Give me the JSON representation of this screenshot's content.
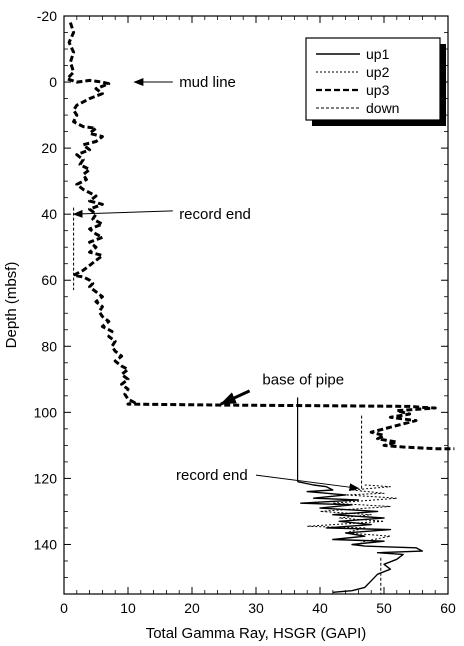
{
  "chart_data": {
    "type": "line",
    "xlabel": "Total Gamma Ray, HSGR (GAPI)",
    "ylabel": "Depth (mbsf)",
    "xlim": [
      0,
      60
    ],
    "ylim": [
      -20,
      155
    ],
    "y_inverted": true,
    "x_ticks": [
      0,
      10,
      20,
      30,
      40,
      50,
      60
    ],
    "y_ticks": [
      -20,
      0,
      20,
      40,
      60,
      80,
      100,
      120,
      140
    ],
    "grid": false,
    "legend_position": "top-right",
    "series": [
      {
        "name": "up1",
        "style": "solid",
        "points": [
          [
            36.5,
            121
          ],
          [
            39,
            122
          ],
          [
            41,
            122.5
          ],
          [
            42,
            123.5
          ],
          [
            38,
            124
          ],
          [
            44,
            125
          ],
          [
            39,
            126
          ],
          [
            46,
            126.5
          ],
          [
            37,
            127.5
          ],
          [
            45,
            128
          ],
          [
            40,
            129
          ],
          [
            49,
            130
          ],
          [
            42,
            131
          ],
          [
            50,
            132
          ],
          [
            43,
            133
          ],
          [
            48,
            134
          ],
          [
            41,
            135
          ],
          [
            51,
            135.5
          ],
          [
            44,
            136.5
          ],
          [
            47,
            137.5
          ],
          [
            42,
            138.5
          ],
          [
            50,
            139
          ],
          [
            45,
            140
          ],
          [
            47,
            140.5
          ],
          [
            55,
            141
          ],
          [
            56,
            142
          ],
          [
            49,
            142.5
          ],
          [
            53,
            143
          ],
          [
            52,
            144.5
          ],
          [
            50,
            146
          ],
          [
            51,
            147.5
          ],
          [
            49,
            149
          ],
          [
            48,
            151
          ],
          [
            47,
            153
          ],
          [
            45,
            154
          ],
          [
            42,
            154.5
          ]
        ]
      },
      {
        "name": "up2",
        "style": "dotted",
        "points": [
          [
            47,
            122
          ],
          [
            51,
            122.5
          ],
          [
            45,
            123.5
          ],
          [
            50,
            124.5
          ],
          [
            44,
            125
          ],
          [
            52,
            126
          ],
          [
            42,
            127.5
          ],
          [
            51,
            128.5
          ],
          [
            40,
            130
          ],
          [
            48,
            131
          ],
          [
            43,
            132
          ],
          [
            50,
            133
          ],
          [
            38,
            134.5
          ],
          [
            47,
            135
          ],
          [
            44,
            136.5
          ],
          [
            51,
            137.5
          ],
          [
            47,
            139
          ],
          [
            46,
            140
          ]
        ]
      },
      {
        "name": "up3",
        "style": "dashed",
        "points": [
          [
            1,
            -18
          ],
          [
            1.5,
            -15
          ],
          [
            0.8,
            -12
          ],
          [
            1.5,
            -9
          ],
          [
            1,
            -6
          ],
          [
            1.5,
            -3
          ],
          [
            0.5,
            -1
          ],
          [
            2,
            0
          ],
          [
            4,
            -0.5
          ],
          [
            6,
            0
          ],
          [
            7,
            0.5
          ],
          [
            5,
            2
          ],
          [
            6,
            3.5
          ],
          [
            4,
            5
          ],
          [
            3,
            6
          ],
          [
            2,
            7
          ],
          [
            1.5,
            8.5
          ],
          [
            2,
            10
          ],
          [
            1.5,
            12
          ],
          [
            3,
            13.5
          ],
          [
            5,
            14
          ],
          [
            4,
            15.5
          ],
          [
            6,
            16.5
          ],
          [
            5,
            18
          ],
          [
            3,
            19
          ],
          [
            4,
            20.5
          ],
          [
            2,
            22
          ],
          [
            3,
            23.5
          ],
          [
            2.5,
            25
          ],
          [
            4,
            26.5
          ],
          [
            3,
            28
          ],
          [
            3.5,
            29.5
          ],
          [
            2,
            31
          ],
          [
            3,
            32.5
          ],
          [
            4,
            33.5
          ],
          [
            5,
            34.5
          ],
          [
            4,
            36
          ],
          [
            6,
            37
          ],
          [
            4,
            38.5
          ],
          [
            5,
            40
          ],
          [
            4.5,
            41.5
          ],
          [
            6,
            43
          ],
          [
            4,
            44.5
          ],
          [
            5,
            46
          ],
          [
            6,
            47
          ],
          [
            4,
            48.5
          ],
          [
            5,
            50
          ],
          [
            4,
            51.5
          ],
          [
            6,
            52.5
          ],
          [
            5,
            54
          ],
          [
            4,
            55.5
          ],
          [
            3,
            57
          ],
          [
            1.5,
            58.5
          ],
          [
            3,
            59
          ],
          [
            4,
            60
          ],
          [
            4.5,
            61
          ],
          [
            4,
            62
          ],
          [
            5,
            63.5
          ],
          [
            6,
            65
          ],
          [
            5,
            66.5
          ],
          [
            6,
            68
          ],
          [
            5.5,
            69.5
          ],
          [
            6,
            71
          ],
          [
            7,
            72.5
          ],
          [
            6,
            74
          ],
          [
            7.5,
            75.5
          ],
          [
            7,
            77
          ],
          [
            8,
            78.5
          ],
          [
            7.5,
            80
          ],
          [
            8,
            81.5
          ],
          [
            9,
            83
          ],
          [
            8,
            84.5
          ],
          [
            9,
            86
          ],
          [
            10,
            87
          ],
          [
            9,
            88.5
          ],
          [
            10,
            90
          ],
          [
            9,
            91.5
          ],
          [
            10,
            93
          ],
          [
            9.5,
            94.5
          ],
          [
            10,
            96
          ],
          [
            11,
            97
          ],
          [
            10,
            97.5
          ],
          [
            25,
            97.8
          ],
          [
            40,
            98
          ],
          [
            54,
            98.2
          ],
          [
            56,
            98.5
          ],
          [
            58,
            98.7
          ],
          [
            52,
            99.5
          ],
          [
            54,
            100.5
          ],
          [
            51,
            101.5
          ],
          [
            55,
            102.5
          ],
          [
            53,
            103.5
          ],
          [
            50,
            105
          ],
          [
            48,
            106
          ],
          [
            50,
            107
          ],
          [
            49,
            108
          ],
          [
            52,
            109
          ],
          [
            50,
            110
          ],
          [
            53,
            110.5
          ],
          [
            58,
            111
          ],
          [
            61,
            111
          ]
        ]
      },
      {
        "name": "down",
        "style": "short-dash",
        "points": [
          [
            1.5,
            38
          ],
          [
            1.5,
            63
          ]
        ]
      },
      {
        "name": "down",
        "style": "short-dash",
        "points": [
          [
            46.5,
            101
          ],
          [
            46.5,
            124
          ]
        ]
      },
      {
        "name": "down",
        "style": "short-dash",
        "points": [
          [
            49.5,
            144
          ],
          [
            49.5,
            155
          ]
        ]
      }
    ],
    "annotations": [
      {
        "text": "mud line",
        "label_at": [
          18,
          0
        ],
        "arrow_from": [
          17,
          0
        ],
        "arrow_to": [
          11,
          0
        ]
      },
      {
        "text": "record end",
        "label_at": [
          18,
          40
        ],
        "arrow_from": [
          17,
          39
        ],
        "arrow_to": [
          1.5,
          40
        ]
      },
      {
        "text": "base of pipe",
        "label_at": [
          31,
          90
        ],
        "arrow_from": [
          29,
          93.5
        ],
        "arrow_to": [
          24.5,
          97.5
        ]
      },
      {
        "text": "record end",
        "label_at": [
          17.5,
          119
        ],
        "arrow_from": [
          30,
          119
        ],
        "arrow_to": [
          46,
          123
        ]
      }
    ]
  }
}
